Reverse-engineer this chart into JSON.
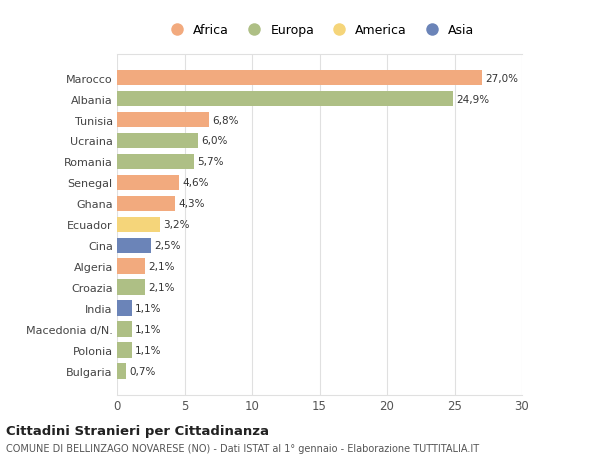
{
  "countries": [
    "Marocco",
    "Albania",
    "Tunisia",
    "Ucraina",
    "Romania",
    "Senegal",
    "Ghana",
    "Ecuador",
    "Cina",
    "Algeria",
    "Croazia",
    "India",
    "Macedonia d/N.",
    "Polonia",
    "Bulgaria"
  ],
  "values": [
    27.0,
    24.9,
    6.8,
    6.0,
    5.7,
    4.6,
    4.3,
    3.2,
    2.5,
    2.1,
    2.1,
    1.1,
    1.1,
    1.1,
    0.7
  ],
  "labels": [
    "27,0%",
    "24,9%",
    "6,8%",
    "6,0%",
    "5,7%",
    "4,6%",
    "4,3%",
    "3,2%",
    "2,5%",
    "2,1%",
    "2,1%",
    "1,1%",
    "1,1%",
    "1,1%",
    "0,7%"
  ],
  "colors": [
    "#F2AA7E",
    "#AEBF85",
    "#F2AA7E",
    "#AEBF85",
    "#AEBF85",
    "#F2AA7E",
    "#F2AA7E",
    "#F5D57A",
    "#6B84B8",
    "#F2AA7E",
    "#AEBF85",
    "#6B84B8",
    "#AEBF85",
    "#AEBF85",
    "#AEBF85"
  ],
  "legend_labels": [
    "Africa",
    "Europa",
    "America",
    "Asia"
  ],
  "legend_colors": [
    "#F2AA7E",
    "#AEBF85",
    "#F5D57A",
    "#6B84B8"
  ],
  "xlim": [
    0,
    30
  ],
  "xticks": [
    0,
    5,
    10,
    15,
    20,
    25,
    30
  ],
  "title": "Cittadini Stranieri per Cittadinanza",
  "subtitle": "COMUNE DI BELLINZAGO NOVARESE (NO) - Dati ISTAT al 1° gennaio - Elaborazione TUTTITALIA.IT",
  "bg_color": "#FFFFFF",
  "grid_color": "#E0E0E0",
  "bar_height": 0.75
}
